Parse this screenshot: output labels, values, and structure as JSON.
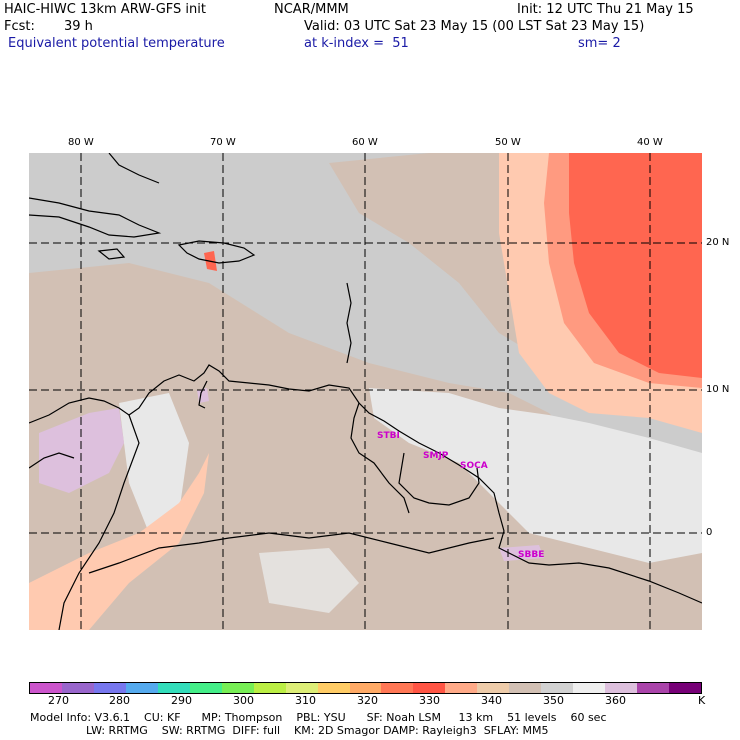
{
  "header": {
    "model": "HAIC-HIWC 13km ARW-GFS init",
    "org": "NCAR/MMM",
    "init": "Init: 12 UTC Thu 21 May 15",
    "fcst_label": "Fcst:",
    "fcst_value": "39 h",
    "valid": "Valid: 03 UTC Sat 23 May 15 (00 LST Sat 23 May 15)",
    "field": "Equivalent potential temperature",
    "level": "at k-index =  51",
    "smoothing": "sm= 2"
  },
  "axes": {
    "lon_labels": [
      "80 W",
      "70 W",
      "60 W",
      "50 W",
      "40 W"
    ],
    "lat_labels": [
      "20 N",
      "10 N",
      "0"
    ]
  },
  "stations": [
    "STBI",
    "SMJP",
    "SOCA",
    "SBBE"
  ],
  "colorbar": {
    "colors": [
      "#cc55cc",
      "#9966cc",
      "#7777ee",
      "#55aaee",
      "#33ddbb",
      "#44ee88",
      "#77ee55",
      "#bbee44",
      "#ddee77",
      "#ffcc66",
      "#ffaa66",
      "#ff7755",
      "#ff5544",
      "#ffaa88",
      "#eeccaa",
      "#d2c0b4",
      "#d2d2d2",
      "#efefef",
      "#ddc0dd",
      "#aa44aa",
      "#770077"
    ],
    "labels": [
      "270",
      "280",
      "290",
      "300",
      "310",
      "320",
      "330",
      "340",
      "350",
      "360"
    ],
    "unit": "K"
  },
  "legend_fill_colors": {
    "background_gray": "#cccccc",
    "tan": "#d2c0b4",
    "light_gray": "#e8e8e8",
    "peach": "#ffcab0",
    "salmon": "#ff9a80",
    "red": "#ff6650",
    "lavender": "#ddc0dd"
  },
  "footer": {
    "line1": "Model Info: V3.6.1    CU: KF      MP: Thompson    PBL: YSU      SF: Noah LSM     13 km    51 levels    60 sec",
    "line2": "LW: RRTMG    SW: RRTMG  DIFF: full    KM: 2D Smagor DAMP: Rayleigh3  SFLAY: MM5"
  }
}
